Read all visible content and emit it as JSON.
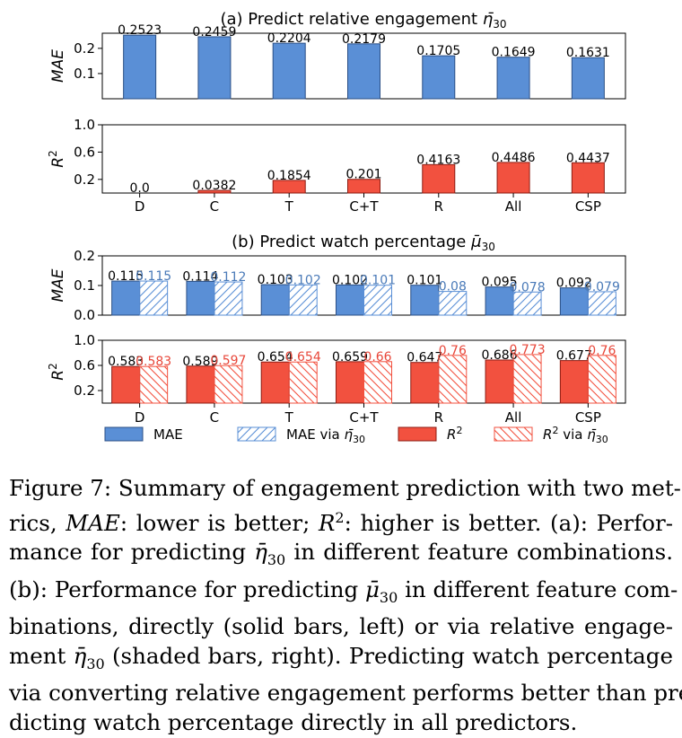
{
  "chart_data": [
    {
      "type": "bar",
      "panel": "a",
      "title": "(a) Predict relative engagement η̄30",
      "title_text": "(a) Predict relative engagement ",
      "title_sym": "η̄",
      "title_sub": "30",
      "categories": [
        "D",
        "C",
        "T",
        "C+T",
        "R",
        "All",
        "CSP"
      ],
      "subplots": [
        {
          "ylabel": "MAE",
          "ylim": [
            0,
            0.26
          ],
          "yticks": [
            0.1,
            0.2
          ],
          "ytick_labels": [
            "0.1",
            "0.2"
          ],
          "series": [
            {
              "name": "MAE",
              "values": [
                0.2523,
                0.2459,
                0.2204,
                0.2179,
                0.1705,
                0.1649,
                0.1631
              ],
              "labels": [
                "0.2523",
                "0.2459",
                "0.2204",
                "0.2179",
                "0.1705",
                "0.1649",
                "0.1631"
              ],
              "style": "solid-blue"
            }
          ]
        },
        {
          "ylabel": "R",
          "ylabel_sup": "2",
          "ylim": [
            0,
            1.0
          ],
          "yticks": [
            0.2,
            0.6,
            1.0
          ],
          "ytick_labels": [
            "0.2",
            "0.6",
            "1.0"
          ],
          "series": [
            {
              "name": "R²",
              "values": [
                0.0,
                0.0382,
                0.1854,
                0.201,
                0.4163,
                0.4486,
                0.4437
              ],
              "labels": [
                "0.0",
                "0.0382",
                "0.1854",
                "0.201",
                "0.4163",
                "0.4486",
                "0.4437"
              ],
              "style": "solid-red"
            }
          ]
        }
      ]
    },
    {
      "type": "bar",
      "panel": "b",
      "title": "(b) Predict watch percentage μ̄30",
      "title_text": "(b) Predict watch percentage ",
      "title_sym": "μ̄",
      "title_sub": "30",
      "categories": [
        "D",
        "C",
        "T",
        "C+T",
        "R",
        "All",
        "CSP"
      ],
      "subplots": [
        {
          "ylabel": "MAE",
          "ylim": [
            0,
            0.2
          ],
          "yticks": [
            0.0,
            0.1,
            0.2
          ],
          "ytick_labels": [
            "0.0",
            "0.1",
            "0.2"
          ],
          "series": [
            {
              "name": "MAE",
              "values": [
                0.115,
                0.114,
                0.103,
                0.102,
                0.101,
                0.095,
                0.092
              ],
              "labels": [
                "0.115",
                "0.114",
                "0.103",
                "0.102",
                "0.101",
                "0.095",
                "0.092"
              ],
              "style": "solid-blue"
            },
            {
              "name": "MAE via η̄30",
              "values": [
                0.115,
                0.112,
                0.102,
                0.101,
                0.08,
                0.078,
                0.079
              ],
              "labels": [
                "0.115",
                "0.112",
                "0.102",
                "0.101",
                "0.08",
                "0.078",
                "0.079"
              ],
              "style": "hatch-blue"
            }
          ]
        },
        {
          "ylabel": "R",
          "ylabel_sup": "2",
          "ylim": [
            0,
            1.0
          ],
          "yticks": [
            0.2,
            0.6,
            1.0
          ],
          "ytick_labels": [
            "0.2",
            "0.6",
            "1.0"
          ],
          "series": [
            {
              "name": "R²",
              "values": [
                0.583,
                0.589,
                0.654,
                0.659,
                0.647,
                0.686,
                0.677
              ],
              "labels": [
                "0.583",
                "0.589",
                "0.654",
                "0.659",
                "0.647",
                "0.686",
                "0.677"
              ],
              "style": "solid-red"
            },
            {
              "name": "R² via η̄30",
              "values": [
                0.583,
                0.597,
                0.654,
                0.66,
                0.76,
                0.773,
                0.76
              ],
              "labels": [
                "0.583",
                "0.597",
                "0.654",
                "0.66",
                "0.76",
                "0.773",
                "0.76"
              ],
              "style": "hatch-red"
            }
          ]
        }
      ]
    }
  ],
  "legend": [
    {
      "name": "MAE",
      "style": "solid-blue",
      "text": "MAE"
    },
    {
      "name": "MAE via η̄30",
      "style": "hatch-blue",
      "text": "MAE via ",
      "sym": "η̄",
      "sub": "30"
    },
    {
      "name": "R²",
      "style": "solid-red",
      "text": "R",
      "sup": "2",
      "italic": true
    },
    {
      "name": "R² via η̄30",
      "style": "hatch-red",
      "text": "R",
      "sup": "2",
      "italic": true,
      "tail": " via ",
      "sym": "η̄",
      "sub": "30"
    }
  ],
  "colors": {
    "blue_fill": "#5a8fd6",
    "blue_stroke": "#2b4f85",
    "blue_hatch": "#5a8fd6",
    "red_fill": "#f2513f",
    "red_stroke": "#8c1c13",
    "red_hatch": "#f2513f",
    "blue_label": "#4a7ab8",
    "red_label": "#e8473a"
  },
  "caption": {
    "full": "Figure 7: Summary of engagement prediction with two metrics, MAE: lower is better; R²: higher is better. (a): Performance for predicting η̄30 in different feature combinations. (b): Performance for predicting μ̄30 in different feature combinations, directly (solid bars, left) or via relative engagement η̄30 (shaded bars, right). Predicting watch percentage via converting relative engagement performs better than predicting watch percentage directly in all predictors.",
    "l1": "Figure 7: Summary of engagement prediction with two met-",
    "l2a": "rics, ",
    "l2b": "MAE",
    "l2c": ": lower is better; ",
    "l2d": "R",
    "l2e": "2",
    "l2f": ": higher is better. (a): Perfor-",
    "l3a": "mance for predicting ",
    "l3b": "η̄",
    "l3c": "30",
    "l3d": " in different feature combinations.",
    "l4a": "(b): Performance for predicting ",
    "l4b": "μ̄",
    "l4c": "30",
    "l4d": " in different feature com-",
    "l5": "binations, directly (solid bars, left) or via relative engage-",
    "l6a": "ment ",
    "l6b": "η̄",
    "l6c": "30",
    "l6d": " (shaded bars, right). Predicting watch percentage",
    "l7": "via converting relative engagement performs better than pre-",
    "l8": "dicting watch percentage directly in all predictors."
  }
}
